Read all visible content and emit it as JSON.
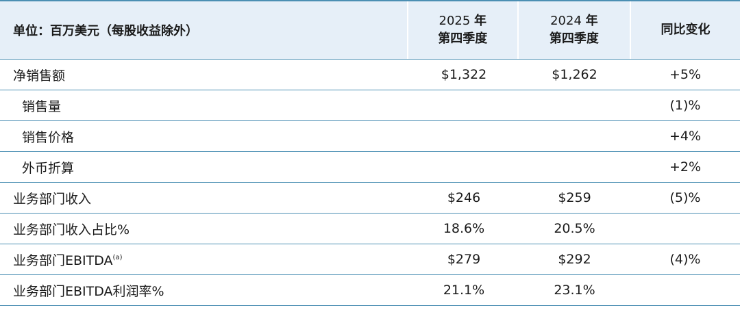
{
  "header": {
    "unit_label": "单位：百万美元（每股收益除外）",
    "col1_year": "2025",
    "col1_year_suffix": "年",
    "col1_quarter": "第四季度",
    "col2_year": "2024",
    "col2_year_suffix": "年",
    "col2_quarter": "第四季度",
    "col3": "同比变化"
  },
  "rows": [
    {
      "label": "净销售额",
      "sup": "",
      "v2025": "$1,322",
      "v2024": "$1,262",
      "change": "+5%"
    },
    {
      "label": "销售量",
      "sup": "",
      "v2025": "",
      "v2024": "",
      "change": "(1)%"
    },
    {
      "label": "销售价格",
      "sup": "",
      "v2025": "",
      "v2024": "",
      "change": "+4%"
    },
    {
      "label": "外币折算",
      "sup": "",
      "v2025": "",
      "v2024": "",
      "change": "+2%"
    },
    {
      "label": "业务部门收入",
      "sup": "",
      "v2025": "$246",
      "v2024": "$259",
      "change": "(5)%"
    },
    {
      "label": "业务部门收入占比%",
      "sup": "",
      "v2025": "18.6%",
      "v2024": "20.5%",
      "change": ""
    },
    {
      "label": "业务部门EBITDA",
      "sup": "(a)",
      "v2025": "$279",
      "v2024": "$292",
      "change": "(4)%"
    },
    {
      "label": "业务部门EBITDA利润率%",
      "sup": "",
      "v2025": "21.1%",
      "v2024": "23.1%",
      "change": ""
    }
  ],
  "colors": {
    "header_bg": "#e6eff8",
    "rule": "#4b8fb3"
  }
}
